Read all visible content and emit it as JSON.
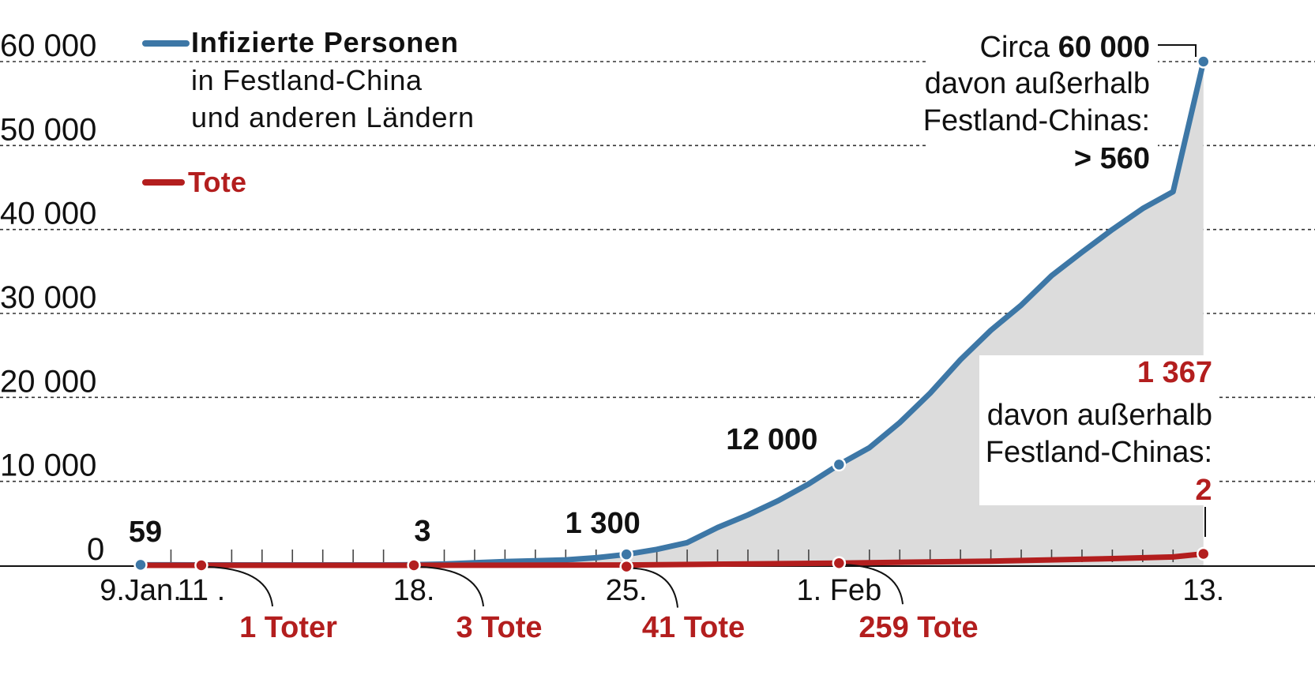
{
  "chart_data": {
    "type": "area",
    "x_start": "9.Jan.",
    "x_end": "13.",
    "ylim": [
      0,
      60000
    ],
    "y_ticks": [
      "60 000",
      "50 000",
      "40 000",
      "30 000",
      "20 000",
      "10 000",
      "0"
    ],
    "y_tick_values": [
      60000,
      50000,
      40000,
      30000,
      20000,
      10000,
      0
    ],
    "grid": "horizontal dashed",
    "x_ticks": [
      {
        "label": "9.Jan.",
        "day": 0
      },
      {
        "label": "11 .",
        "day": 2
      },
      {
        "label": "18.",
        "day": 9
      },
      {
        "label": "25.",
        "day": 16
      },
      {
        "label": "1. Feb",
        "day": 23
      },
      {
        "label": "13.",
        "day": 35
      }
    ],
    "series": [
      {
        "name": "Infizierte Personen",
        "name_sub1": "in Festland-China",
        "name_sub2": "und anderen Ländern",
        "color": "#3d77a6",
        "fill": "#dcdcdc",
        "points": [
          [
            0,
            59
          ],
          [
            1,
            59
          ],
          [
            2,
            50
          ],
          [
            3,
            45
          ],
          [
            4,
            45
          ],
          [
            5,
            45
          ],
          [
            6,
            45
          ],
          [
            7,
            45
          ],
          [
            8,
            45
          ],
          [
            9,
            62
          ],
          [
            10,
            150
          ],
          [
            11,
            300
          ],
          [
            12,
            450
          ],
          [
            13,
            550
          ],
          [
            14,
            650
          ],
          [
            15,
            900
          ],
          [
            16,
            1300
          ],
          [
            17,
            1900
          ],
          [
            18,
            2700
          ],
          [
            19,
            4500
          ],
          [
            20,
            6000
          ],
          [
            21,
            7700
          ],
          [
            22,
            9700
          ],
          [
            23,
            12000
          ],
          [
            24,
            14000
          ],
          [
            25,
            17000
          ],
          [
            26,
            20500
          ],
          [
            27,
            24500
          ],
          [
            28,
            28000
          ],
          [
            29,
            31000
          ],
          [
            30,
            34500
          ],
          [
            31,
            37300
          ],
          [
            32,
            40000
          ],
          [
            33,
            42500
          ],
          [
            34,
            44500
          ],
          [
            35,
            60000
          ]
        ]
      },
      {
        "name": "Tote",
        "color": "#b31e1e",
        "points": [
          [
            0,
            0
          ],
          [
            2,
            1
          ],
          [
            9,
            3
          ],
          [
            16,
            41
          ],
          [
            23,
            259
          ],
          [
            28,
            500
          ],
          [
            32,
            800
          ],
          [
            34,
            1000
          ],
          [
            35,
            1367
          ]
        ]
      }
    ],
    "markers": [
      {
        "series": 0,
        "day": 0,
        "value": 59,
        "label": "59"
      },
      {
        "series": 0,
        "day": 16,
        "value": 1300,
        "label": "1 300"
      },
      {
        "series": 0,
        "day": 23,
        "value": 12000,
        "label": "12 000"
      },
      {
        "series": 0,
        "day": 35,
        "value": 60000,
        "label": ""
      },
      {
        "series": 1,
        "day": 2,
        "value": 1,
        "label": "1 Toter"
      },
      {
        "series": 1,
        "day": 9,
        "value": 3,
        "label": "3 Tote"
      },
      {
        "series": 1,
        "day": 16,
        "value": 41,
        "label": "41 Tote"
      },
      {
        "series": 1,
        "day": 23,
        "value": 259,
        "label": "259 Tote"
      },
      {
        "series": 1,
        "day": 35,
        "value": 1367,
        "label": ""
      }
    ],
    "annotations": {
      "label_18_top": "3",
      "infected_end": {
        "line1_prefix": "Circa",
        "line1_value": "60 000",
        "line2": "davon außerhalb",
        "line3": "Festland-Chinas:",
        "line4": "> 560"
      },
      "deaths_end": {
        "value": "1 367",
        "line2": "davon außerhalb",
        "line3": "Festland-Chinas:",
        "outside": "2"
      }
    }
  }
}
